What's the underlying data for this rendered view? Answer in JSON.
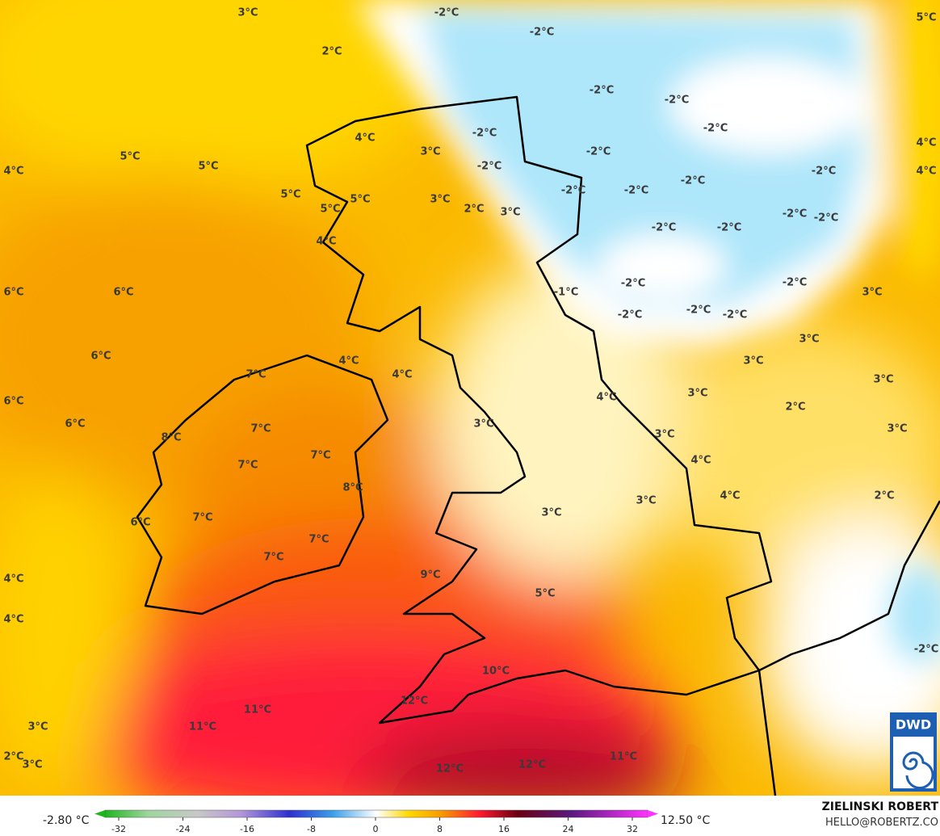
{
  "map": {
    "labels": [
      "3°C",
      "2°C",
      "-2°C",
      "-2°C",
      "5°C",
      "-2°C",
      "-2°C",
      "-2°C",
      "-2°C",
      "4°C",
      "3°C",
      "-2°C",
      "5°C",
      "5°C",
      "4°C",
      "-2°C",
      "4°C",
      "4°C",
      "-2°C",
      "-2°C",
      "-2°C",
      "-2°C",
      "5°C",
      "5°C",
      "3°C",
      "2°C",
      "3°C",
      "5°C",
      "-2°C",
      "-2°C",
      "-2°C",
      "-2°C",
      "4°C",
      "-2°C",
      "-2°C",
      "-1°C",
      "6°C",
      "6°C",
      "-2°C",
      "-2°C",
      "-2°C",
      "3°C",
      "3°C",
      "3°C",
      "6°C",
      "4°C",
      "6°C",
      "4°C",
      "7°C",
      "3°C",
      "4°C",
      "3°C",
      "2°C",
      "6°C",
      "3°C",
      "7°C",
      "3°C",
      "3°C",
      "8°C",
      "7°C",
      "7°C",
      "4°C",
      "8°C",
      "4°C",
      "2°C",
      "3°C",
      "3°C",
      "6°C",
      "7°C",
      "7°C",
      "7°C",
      "4°C",
      "9°C",
      "5°C",
      "4°C",
      "-2°C",
      "10°C",
      "12°C",
      "11°C",
      "11°C",
      "3°C",
      "2°C",
      "3°C",
      "12°C",
      "12°C",
      "11°C"
    ]
  },
  "logo": "DWD",
  "colorbar": {
    "min_label": "-2.80 °C",
    "max_label": "12.50 °C",
    "ticks": [
      -32,
      -24,
      -16,
      -8,
      0,
      8,
      16,
      24,
      32
    ]
  },
  "credit": {
    "author": "ZIELINSKI ROBERT",
    "contact": "HELLO@ROBERTZ.CO"
  }
}
